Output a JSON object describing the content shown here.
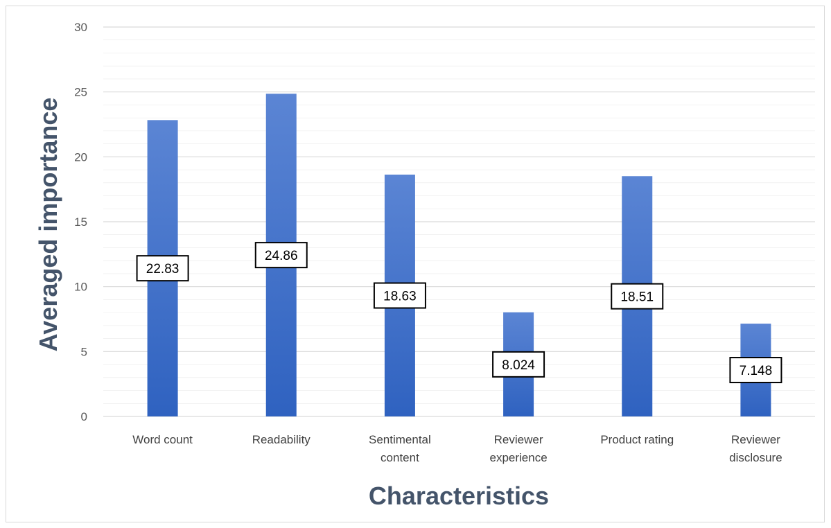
{
  "chart_data": {
    "type": "bar",
    "title": "",
    "xlabel": "Characteristics",
    "ylabel": "Averaged importance",
    "ylim": [
      0,
      30
    ],
    "yticks": [
      0,
      5,
      10,
      15,
      20,
      25,
      30
    ],
    "minor_grid_step": 1,
    "grid": true,
    "legend": "none",
    "categories": [
      [
        "Word count"
      ],
      [
        "Readability"
      ],
      [
        "Sentimental",
        "content"
      ],
      [
        "Reviewer",
        "experience"
      ],
      [
        "Product rating"
      ],
      [
        "Reviewer",
        "disclosure"
      ]
    ],
    "values": [
      22.83,
      24.86,
      18.63,
      8.024,
      18.51,
      7.148
    ],
    "data_labels": [
      "22.83",
      "24.86",
      "18.63",
      "8.024",
      "18.51",
      "7.148"
    ],
    "colors": {
      "bar_top": "#5b85d4",
      "bar_bottom": "#2f62c0",
      "grid": "#d9d9d9",
      "axis_title": "#44546a"
    }
  }
}
